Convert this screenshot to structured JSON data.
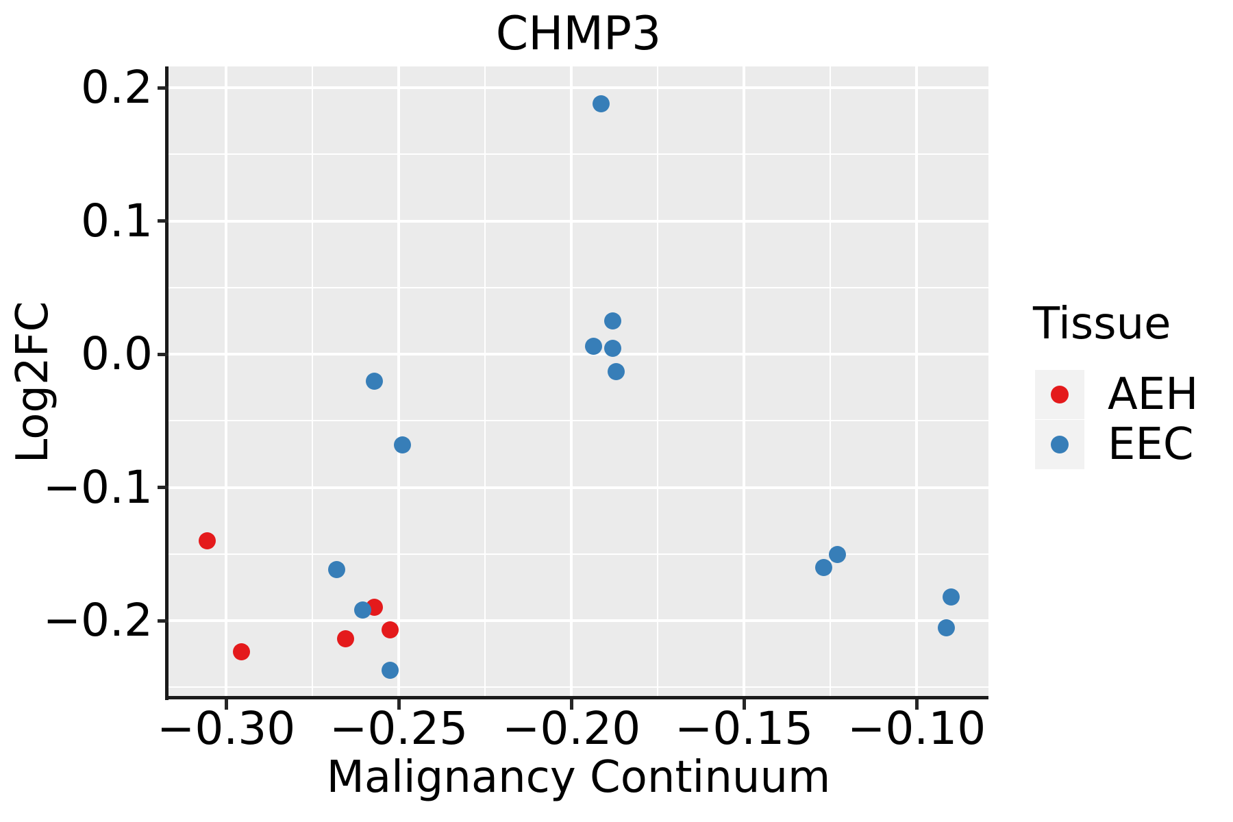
{
  "figure": {
    "title": "CHMP3",
    "x_axis_title": "Malignancy Continuum",
    "y_axis_title": "Log2FC"
  },
  "legend": {
    "title": "Tissue",
    "position": "right",
    "items": [
      {
        "label": "AEH",
        "color": "#E41A1C"
      },
      {
        "label": "EEC",
        "color": "#377EB8"
      }
    ]
  },
  "colors": {
    "panel_background": "#EBEBEB",
    "gridline": "#FFFFFF",
    "axis_line": "#1A1A1A",
    "legend_key_background": "#F2F2F2",
    "aeh_red": "#E41A1C",
    "eec_blue": "#377EB8"
  },
  "chart_data": {
    "type": "scatter",
    "title": "CHMP3",
    "xlabel": "Malignancy Continuum",
    "ylabel": "Log2FC",
    "xlim": [
      -0.3167,
      -0.0792
    ],
    "ylim": [
      -0.2581,
      0.216
    ],
    "grid": "major_and_minor",
    "legend_position": "right",
    "x_major_ticks": {
      "values": [
        -0.3,
        -0.25,
        -0.2,
        -0.15,
        -0.1
      ],
      "labels": [
        "−0.30",
        "−0.25",
        "−0.20",
        "−0.15",
        "−0.10"
      ]
    },
    "y_major_ticks": {
      "values": [
        0.2,
        0.1,
        0.0,
        -0.1,
        -0.2
      ],
      "labels": [
        "0.2",
        "0.1",
        "0.0",
        "−0.1",
        "−0.2"
      ]
    },
    "x_minor_ticks": [
      -0.275,
      -0.225,
      -0.175,
      -0.125
    ],
    "y_minor_ticks": [
      0.15,
      0.05,
      -0.05,
      -0.15,
      -0.25
    ],
    "series": [
      {
        "name": "AEH",
        "color": "#E41A1C",
        "points": [
          [
            -0.3055,
            -0.14
          ],
          [
            -0.2955,
            -0.2235
          ],
          [
            -0.2655,
            -0.2135
          ],
          [
            -0.257,
            -0.19
          ],
          [
            -0.2525,
            -0.207
          ]
        ]
      },
      {
        "name": "EEC",
        "color": "#377EB8",
        "points": [
          [
            -0.1915,
            0.188
          ],
          [
            -0.188,
            0.025
          ],
          [
            -0.1935,
            0.006
          ],
          [
            -0.188,
            0.0045
          ],
          [
            -0.187,
            -0.013
          ],
          [
            -0.257,
            -0.0205
          ],
          [
            -0.249,
            -0.068
          ],
          [
            -0.268,
            -0.1615
          ],
          [
            -0.2605,
            -0.192
          ],
          [
            -0.2525,
            -0.2375
          ],
          [
            -0.127,
            -0.16
          ],
          [
            -0.123,
            -0.1505
          ],
          [
            -0.09,
            -0.1825
          ],
          [
            -0.0915,
            -0.2055
          ]
        ]
      }
    ]
  }
}
